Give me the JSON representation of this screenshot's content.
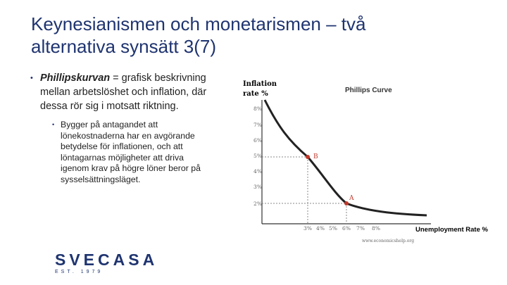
{
  "header": {
    "title_lines": [
      "Keynesianismen och monetarismen – två",
      "alternativa synsätt 3(7)"
    ]
  },
  "bullet": {
    "lead": "Phillipskurvan",
    "lines": [
      "= grafisk beskrivning",
      "mellan arbetslöshet och inflation, där",
      "dessa rör sig i motsatt riktning."
    ]
  },
  "sub_bullet": {
    "lines": [
      "Bygger på antagandet att",
      "lönekostnaderna har en avgörande",
      "betydelse för inflationen, och att",
      "löntagarnas möjligheter att driva",
      "igenom krav på högre löner beror på",
      "sysselsättningsläget."
    ]
  },
  "figure": {
    "title": "Phillips Curve",
    "y_label_lines": [
      "Inflation",
      "rate %"
    ],
    "x_label": "Unemployment Rate %",
    "y_tick_labels": [
      "8%",
      "7%",
      "6%",
      "5%",
      "4%",
      "3%",
      "2%"
    ],
    "x_tick_labels": [
      "3%",
      "4%",
      "5%",
      "6%",
      "7%",
      "8%"
    ],
    "points": [
      "B",
      "A"
    ],
    "source": "www.economicshelp.org"
  },
  "logo": {
    "name": "SVECASA",
    "established": "EST. 1979"
  }
}
